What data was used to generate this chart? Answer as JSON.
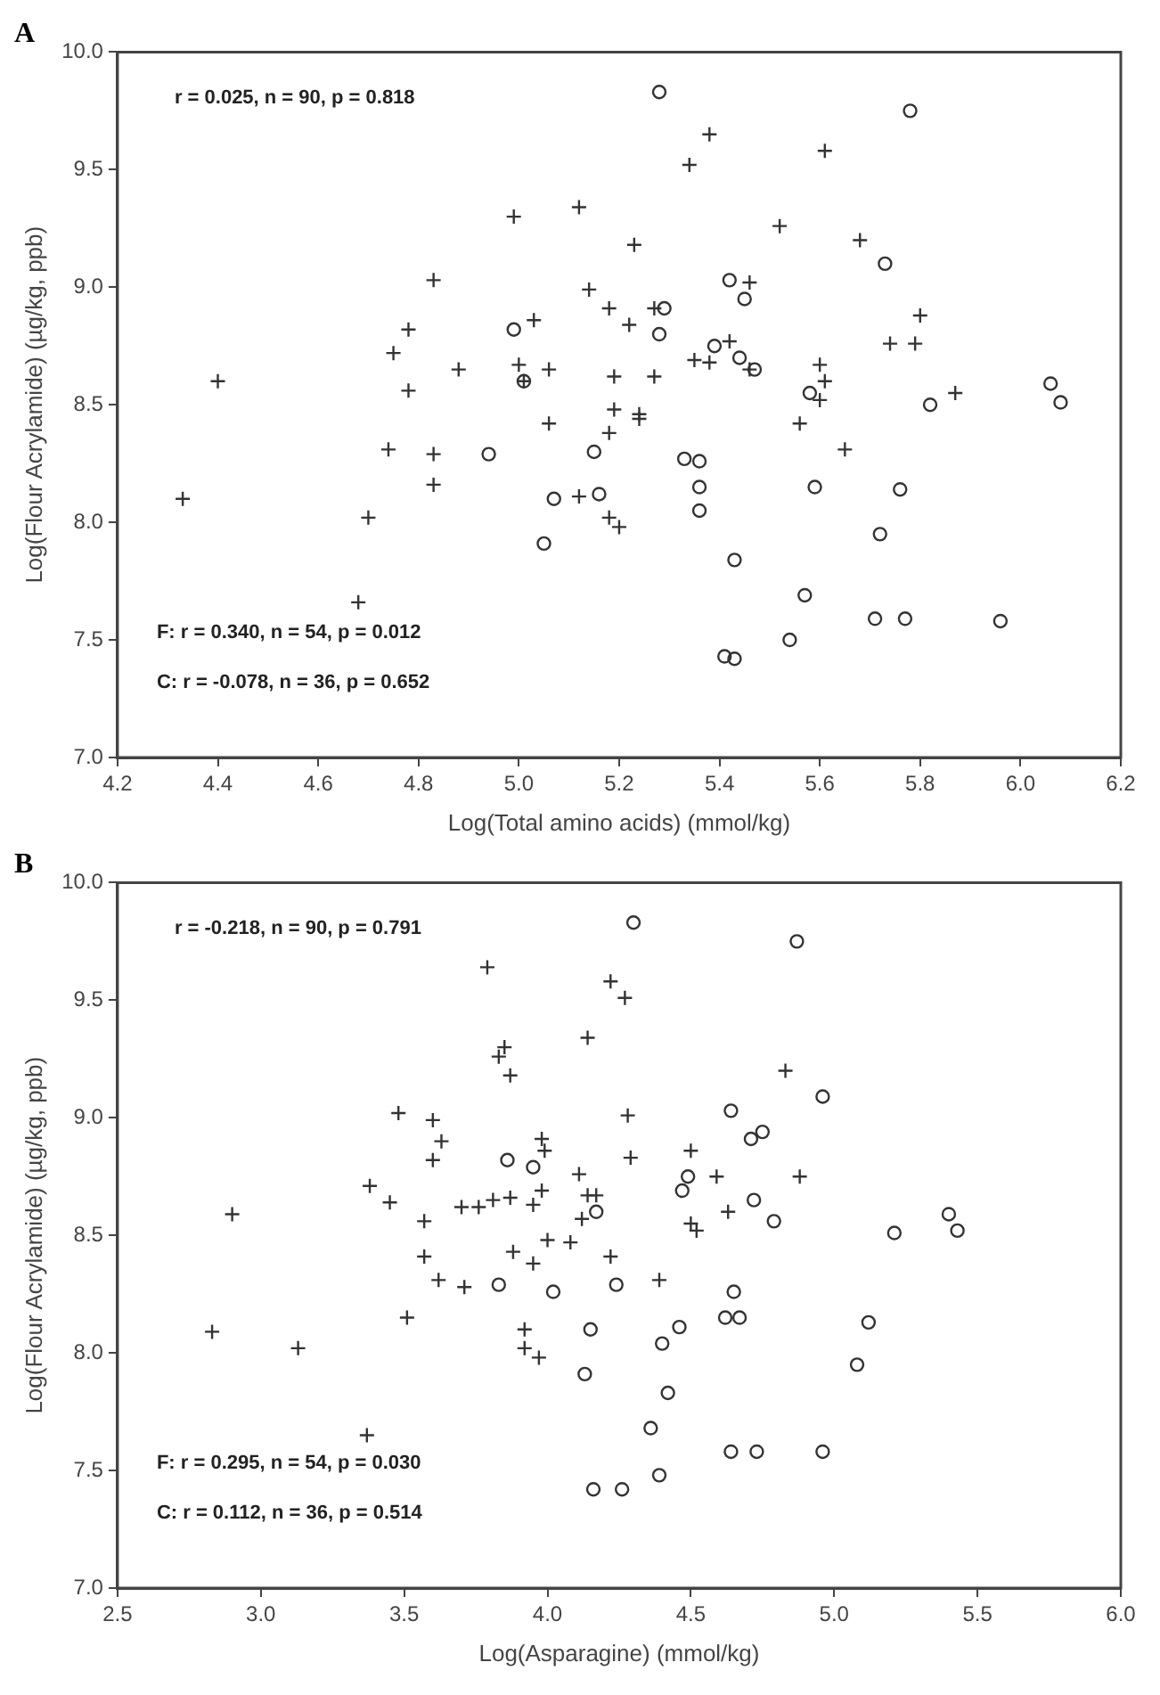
{
  "chart_data": [
    {
      "type": "scatter",
      "title": "A",
      "xlabel": "Log(Total amino acids) (mmol/kg)",
      "ylabel": "Log(Flour Acrylamide) (µg/kg, ppb)",
      "xlim": [
        4.2,
        6.2
      ],
      "xticks": [
        4.2,
        4.4,
        4.6,
        4.8,
        {
          "value": 5,
          "label": "5.0"
        },
        5.2,
        5.4,
        5.6,
        5.8,
        {
          "value": 6,
          "label": "6.0"
        },
        6.2
      ],
      "ylim": [
        7,
        10
      ],
      "yticks": [
        {
          "value": 7,
          "label": "7.0"
        },
        7.5,
        {
          "value": 8,
          "label": "8.0"
        },
        8.5,
        {
          "value": 9,
          "label": "9.0"
        },
        9.5,
        {
          "value": 10,
          "label": "10.0"
        }
      ],
      "grid": false,
      "legend": false,
      "annotations": [
        "r = 0.025, n = 90, p = 0.818",
        "F: r = 0.340, n = 54, p = 0.012",
        "C: r = -0.078, n = 36, p = 0.652"
      ],
      "series": [
        {
          "marker": "cross",
          "color": "#333333",
          "x": [
            4.33,
            4.4,
            4.68,
            4.7,
            4.74,
            4.75,
            4.78,
            4.78,
            4.83,
            4.83,
            4.83,
            4.88,
            4.99,
            5.03,
            5.0,
            5.01,
            5.06,
            5.06,
            5.12,
            5.14,
            5.12,
            5.18,
            5.19,
            5.19,
            5.18,
            5.18,
            5.2,
            5.38,
            5.34,
            5.61,
            5.52,
            5.68,
            5.23,
            5.46,
            5.27,
            5.22,
            5.8,
            5.74,
            5.79,
            5.42,
            5.35,
            5.38,
            5.46,
            5.6,
            5.61,
            5.6,
            5.87,
            5.27,
            5.24,
            5.24,
            5.56,
            5.65
          ],
          "values": [
            8.1,
            8.6,
            7.66,
            8.02,
            8.31,
            8.72,
            8.82,
            8.56,
            9.03,
            8.29,
            8.16,
            8.65,
            9.3,
            8.86,
            8.67,
            8.6,
            8.65,
            8.42,
            9.34,
            8.99,
            8.11,
            8.91,
            8.62,
            8.48,
            8.38,
            8.02,
            7.98,
            9.65,
            9.52,
            9.58,
            9.26,
            9.2,
            9.18,
            9.02,
            8.91,
            8.84,
            8.88,
            8.76,
            8.76,
            8.77,
            8.69,
            8.68,
            8.65,
            8.67,
            8.6,
            8.52,
            8.55,
            8.62,
            8.46,
            8.44,
            8.42,
            8.31
          ]
        },
        {
          "marker": "circle",
          "color": "#333333",
          "x": [
            4.94,
            4.99,
            5.01,
            5.07,
            5.05,
            5.16,
            5.15,
            5.28,
            5.78,
            5.73,
            5.42,
            5.45,
            5.29,
            5.28,
            5.39,
            5.44,
            5.47,
            5.58,
            5.82,
            6.06,
            6.08,
            5.33,
            5.36,
            5.36,
            5.36,
            5.59,
            5.76,
            5.72,
            5.43,
            5.57,
            5.71,
            5.77,
            5.96,
            5.54,
            5.41,
            5.43
          ],
          "values": [
            8.29,
            8.82,
            8.6,
            8.1,
            7.91,
            8.12,
            8.3,
            9.83,
            9.75,
            9.1,
            9.03,
            8.95,
            8.91,
            8.8,
            8.75,
            8.7,
            8.65,
            8.55,
            8.5,
            8.59,
            8.51,
            8.27,
            8.26,
            8.15,
            8.05,
            8.15,
            8.14,
            7.95,
            7.84,
            7.69,
            7.59,
            7.59,
            7.58,
            7.5,
            7.43,
            7.42
          ]
        }
      ]
    },
    {
      "type": "scatter",
      "title": "B",
      "xlabel": "Log(Asparagine) (mmol/kg)",
      "ylabel": "Log(Flour Acrylamide) (µg/kg, ppb)",
      "xlim": [
        2.5,
        6
      ],
      "xticks": [
        2.5,
        {
          "value": 3,
          "label": "3.0"
        },
        3.5,
        {
          "value": 4,
          "label": "4.0"
        },
        4.5,
        {
          "value": 5,
          "label": "5.0"
        },
        5.5,
        {
          "value": 6,
          "label": "6.0"
        }
      ],
      "ylim": [
        7,
        10
      ],
      "yticks": [
        {
          "value": 7,
          "label": "7.0"
        },
        7.5,
        {
          "value": 8,
          "label": "8.0"
        },
        8.5,
        {
          "value": 9,
          "label": "9.0"
        },
        9.5,
        {
          "value": 10,
          "label": "10.0"
        }
      ],
      "grid": false,
      "legend": false,
      "annotations": [
        "r = -0.218, n = 90, p = 0.791",
        "F: r = 0.295, n = 54, p = 0.030",
        "C: r = 0.112, n = 36, p = 0.514"
      ],
      "series": [
        {
          "marker": "cross",
          "color": "#333333",
          "x": [
            2.83,
            2.9,
            3.13,
            3.37,
            3.38,
            3.45,
            3.48,
            3.51,
            3.57,
            3.57,
            3.62,
            3.6,
            3.63,
            3.6,
            3.71,
            3.7,
            3.76,
            3.81,
            3.87,
            3.98,
            3.99,
            3.79,
            3.85,
            3.83,
            3.87,
            3.98,
            3.95,
            3.88,
            3.95,
            4.0,
            4.08,
            3.92,
            3.92,
            3.97,
            4.11,
            4.14,
            4.17,
            4.12,
            4.22,
            4.14,
            4.22,
            4.27,
            4.83,
            4.28,
            4.5,
            4.29,
            4.59,
            4.88,
            4.63,
            4.5,
            4.52,
            4.39
          ],
          "values": [
            8.09,
            8.59,
            8.02,
            7.65,
            8.71,
            8.64,
            9.02,
            8.15,
            8.56,
            8.41,
            8.31,
            8.99,
            8.9,
            8.82,
            8.28,
            8.62,
            8.62,
            8.65,
            8.66,
            8.91,
            8.86,
            9.64,
            9.3,
            9.26,
            9.18,
            8.69,
            8.63,
            8.43,
            8.38,
            8.48,
            8.47,
            8.1,
            8.02,
            7.98,
            8.76,
            8.67,
            8.67,
            8.57,
            8.41,
            9.34,
            9.58,
            9.51,
            9.2,
            9.01,
            8.86,
            8.83,
            8.75,
            8.75,
            8.6,
            8.55,
            8.52,
            8.31
          ]
        },
        {
          "marker": "circle",
          "color": "#333333",
          "x": [
            3.83,
            3.86,
            3.95,
            4.02,
            4.15,
            4.13,
            4.17,
            4.24,
            4.16,
            4.3,
            4.87,
            4.96,
            4.64,
            4.71,
            4.75,
            4.49,
            4.47,
            4.72,
            4.79,
            5.21,
            5.4,
            5.43,
            4.65,
            4.62,
            4.67,
            4.46,
            4.4,
            5.12,
            5.08,
            4.42,
            4.36,
            4.64,
            4.73,
            4.96,
            4.39,
            4.26
          ],
          "values": [
            8.29,
            8.82,
            8.79,
            8.26,
            8.1,
            7.91,
            8.6,
            8.29,
            7.42,
            9.83,
            9.75,
            9.09,
            9.03,
            8.91,
            8.94,
            8.75,
            8.69,
            8.65,
            8.56,
            8.51,
            8.59,
            8.52,
            8.26,
            8.15,
            8.15,
            8.11,
            8.04,
            8.13,
            7.95,
            7.83,
            7.68,
            7.58,
            7.58,
            7.58,
            7.48,
            7.42
          ]
        }
      ]
    }
  ]
}
